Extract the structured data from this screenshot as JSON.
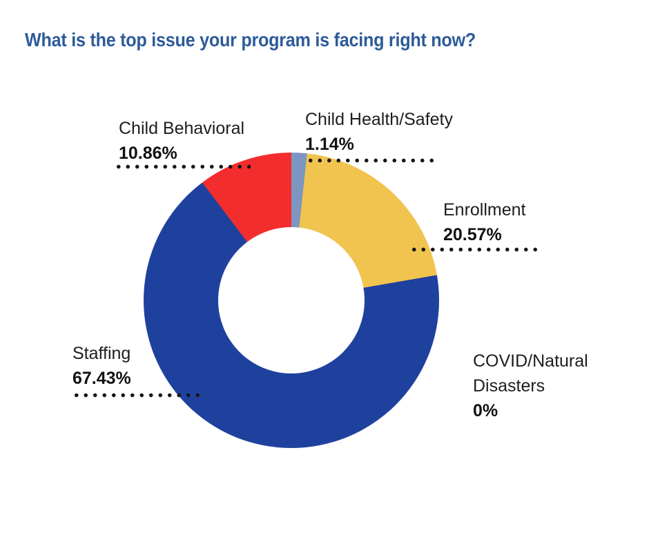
{
  "title": {
    "text": "What is the top issue your program is facing right now?",
    "color": "#2d5b9a"
  },
  "chart_data": {
    "type": "pie",
    "variant": "donut",
    "title": "What is the top issue your program is facing right now?",
    "categories": [
      "Child Health/Safety",
      "Enrollment",
      "COVID/Natural Disasters",
      "Staffing",
      "Child Behavioral"
    ],
    "values": [
      1.14,
      20.57,
      0,
      67.43,
      10.86
    ],
    "slices": [
      {
        "label": "Child Health/Safety",
        "value": 1.14,
        "display": "1.14%",
        "color": "#7d95c1"
      },
      {
        "label": "Enrollment",
        "value": 20.57,
        "display": "20.57%",
        "color": "#f1c44f"
      },
      {
        "label": "COVID/Natural Disasters",
        "value": 0,
        "display": "0%",
        "color": null
      },
      {
        "label": "Staffing",
        "value": 67.43,
        "display": "67.43%",
        "color": "#1f419e"
      },
      {
        "label": "Child Behavioral",
        "value": 10.86,
        "display": "10.86%",
        "color": "#f32d2d"
      }
    ],
    "start_angle_deg": 2,
    "direction": "clockwise",
    "inner_radius_ratio": 0.495,
    "legend_position": "none",
    "label_style": "callout-with-dotted-leader",
    "leader_dot_color": "#151515",
    "label_text_color": "#1d1d1d"
  }
}
